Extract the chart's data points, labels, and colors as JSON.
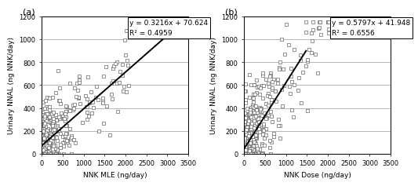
{
  "panel_a": {
    "label": "(a)",
    "xlabel": "NNK MLE (ng/day)",
    "ylabel": "Urinary NNAL (ng NNK/day)",
    "xlim": [
      0,
      3500
    ],
    "ylim": [
      0,
      1200
    ],
    "xticks": [
      0,
      500,
      1000,
      1500,
      2000,
      2500,
      3000,
      3500
    ],
    "yticks": [
      0,
      200,
      400,
      600,
      800,
      1000,
      1200
    ],
    "slope": 0.3216,
    "intercept": 70.624,
    "r2": 0.4959,
    "eq_text": "y = 0.3216x + 70.624\nR² = 0.4959",
    "line_x": [
      0,
      2900
    ],
    "scatter_seed": 42
  },
  "panel_b": {
    "label": "(b)",
    "xlabel": "NNK Dose (ng/day)",
    "ylabel": "Urinary NNAL (ng NNK/day)",
    "xlim": [
      0,
      3500
    ],
    "ylim": [
      0,
      1200
    ],
    "xticks": [
      0,
      500,
      1000,
      1500,
      2000,
      2500,
      3000,
      3500
    ],
    "yticks": [
      0,
      200,
      400,
      600,
      800,
      1000,
      1200
    ],
    "slope": 0.5797,
    "intercept": 41.948,
    "r2": 0.6556,
    "eq_text": "y = 0.5797x + 41.948\nR² = 0.6556",
    "line_x": [
      0,
      1480
    ],
    "scatter_seed": 99
  },
  "marker_style": "s",
  "marker_size": 3.5,
  "marker_facecolor": "white",
  "marker_edgecolor": "#666666",
  "marker_linewidth": 0.5,
  "line_color": "black",
  "line_width": 1.4,
  "font_size_label": 6.5,
  "font_size_tick": 6,
  "font_size_eq": 6.5,
  "font_size_panel": 8,
  "grid_color": "#999999",
  "grid_linewidth": 0.5,
  "fig_width": 5.0,
  "fig_height": 2.3
}
